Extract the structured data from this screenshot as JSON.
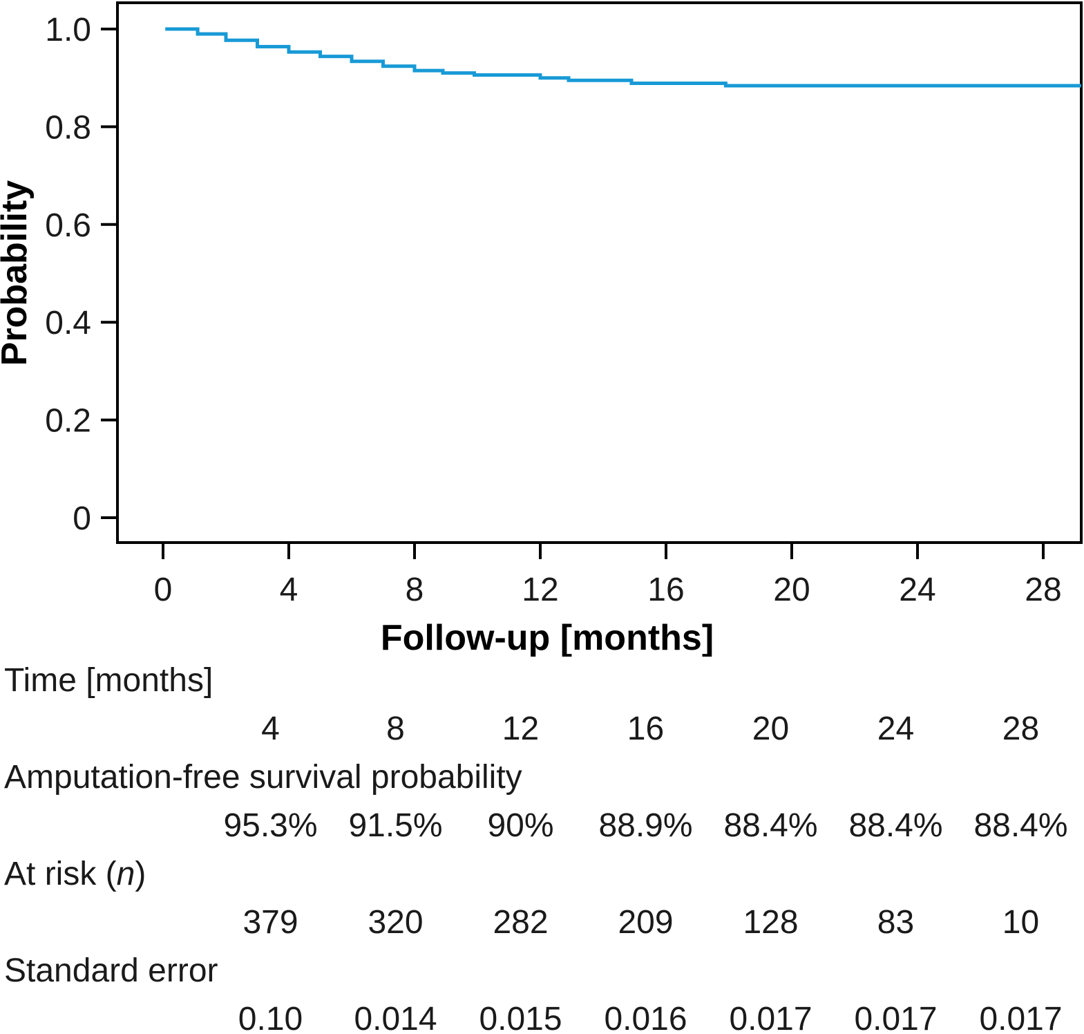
{
  "figure": {
    "background": "#ffffff",
    "axis_color": "#000000",
    "text_color": "#1a1a1a",
    "curve_color": "#189ad6"
  },
  "chart_data": {
    "type": "line",
    "variant": "kaplan-meier-step",
    "title": "",
    "xlabel": "Follow-up [months]",
    "ylabel": "Probability",
    "xlim": [
      0,
      29.3
    ],
    "ylim": [
      0,
      1.05
    ],
    "grid": false,
    "legend": "none",
    "x_ticks": [
      {
        "value": 0,
        "label": "0"
      },
      {
        "value": 4,
        "label": "4"
      },
      {
        "value": 8,
        "label": "8"
      },
      {
        "value": 12,
        "label": "12"
      },
      {
        "value": 16,
        "label": "16"
      },
      {
        "value": 20,
        "label": "20"
      },
      {
        "value": 24,
        "label": "24"
      },
      {
        "value": 28,
        "label": "28"
      }
    ],
    "y_ticks": [
      {
        "value": 0,
        "label": "0"
      },
      {
        "value": 0.2,
        "label": "0.2"
      },
      {
        "value": 0.4,
        "label": "0.4"
      },
      {
        "value": 0.6,
        "label": "0.6"
      },
      {
        "value": 0.8,
        "label": "0.8"
      },
      {
        "value": 1.0,
        "label": "1.0"
      }
    ],
    "series": [
      {
        "name": "Amputation-free survival probability",
        "color": "#189ad6",
        "end_time": 29.3,
        "steps": [
          [
            0.07,
            1.0
          ],
          [
            1.1,
            0.99
          ],
          [
            2.0,
            0.977
          ],
          [
            3.0,
            0.964
          ],
          [
            4.0,
            0.953
          ],
          [
            5.0,
            0.944
          ],
          [
            6.0,
            0.934
          ],
          [
            7.0,
            0.924
          ],
          [
            8.0,
            0.915
          ],
          [
            8.9,
            0.91
          ],
          [
            9.9,
            0.906
          ],
          [
            12.0,
            0.9
          ],
          [
            12.9,
            0.895
          ],
          [
            14.9,
            0.889
          ],
          [
            17.9,
            0.884
          ]
        ]
      }
    ]
  },
  "table": {
    "rows": [
      {
        "id": "time",
        "label": "Time [months]",
        "values": [
          "4",
          "8",
          "12",
          "16",
          "20",
          "24",
          "28"
        ]
      },
      {
        "id": "survival",
        "label": "Amputation-free survival probability",
        "values": [
          "95.3%",
          "91.5%",
          "90%",
          "88.9%",
          "88.4%",
          "88.4%",
          "88.4%"
        ]
      },
      {
        "id": "at-risk",
        "label_parts": [
          "At risk (",
          "n",
          ")"
        ],
        "values": [
          "379",
          "320",
          "282",
          "209",
          "128",
          "83",
          "10"
        ]
      },
      {
        "id": "standard-error",
        "label": "Standard error",
        "values": [
          "0.10",
          "0.014",
          "0.015",
          "0.016",
          "0.017",
          "0.017",
          "0.017"
        ]
      }
    ]
  }
}
